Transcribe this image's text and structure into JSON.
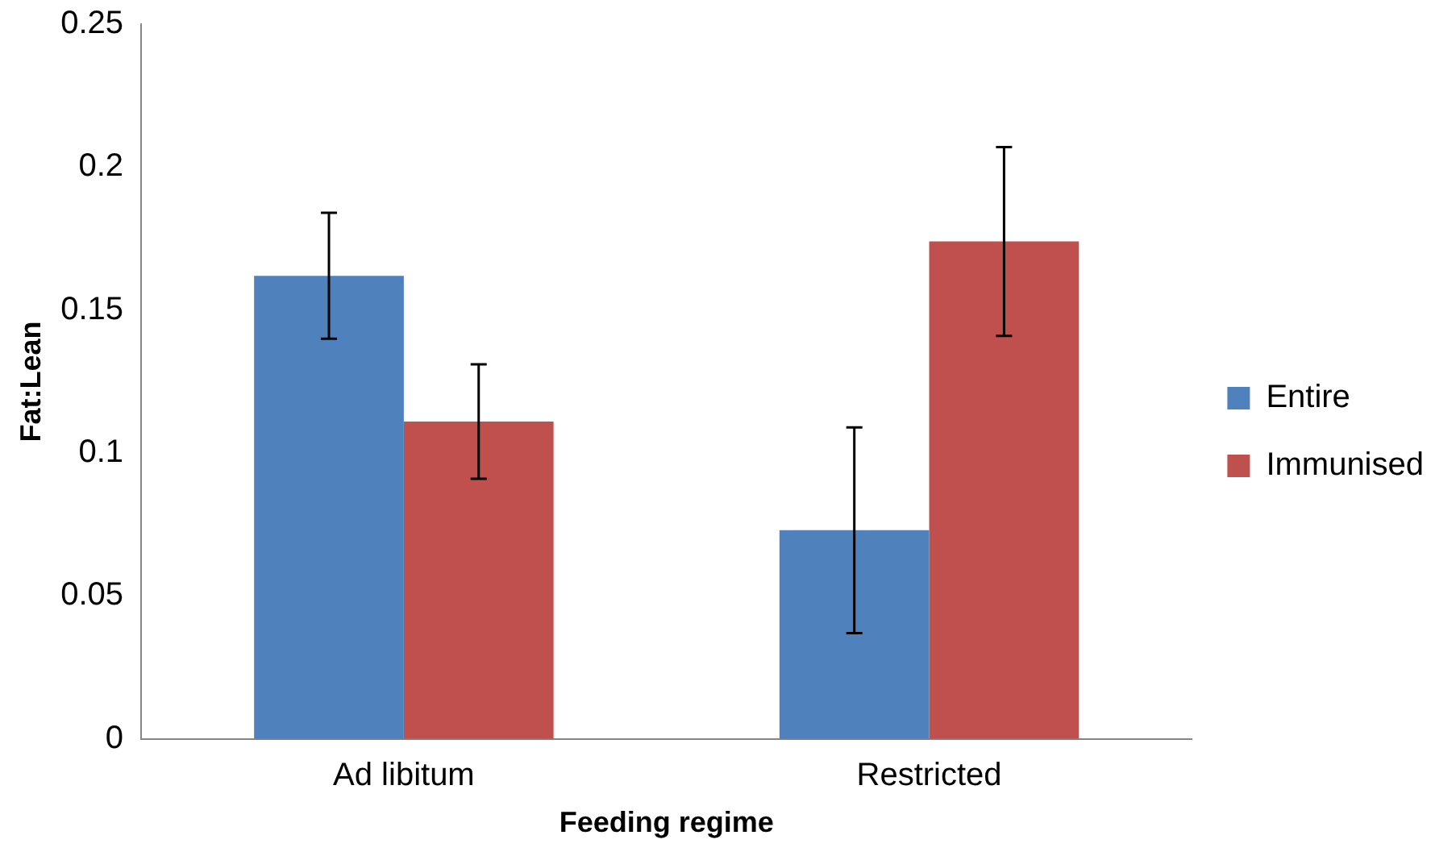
{
  "chart_data": {
    "type": "bar",
    "xlabel": "Feeding regime",
    "ylabel": "Fat:Lean",
    "categories": [
      "Ad libitum",
      "Restricted"
    ],
    "series": [
      {
        "name": "Entire",
        "color": "#4f81bd",
        "values": [
          0.162,
          0.073
        ],
        "errors": [
          0.022,
          0.036
        ]
      },
      {
        "name": "Immunised",
        "color": "#c0504d",
        "values": [
          0.111,
          0.174
        ],
        "errors": [
          0.02,
          0.033
        ]
      }
    ],
    "ylim": [
      0,
      0.25
    ],
    "yticks": [
      0,
      0.05,
      0.1,
      0.15,
      0.2,
      0.25
    ],
    "grid": false,
    "legend": "right"
  }
}
